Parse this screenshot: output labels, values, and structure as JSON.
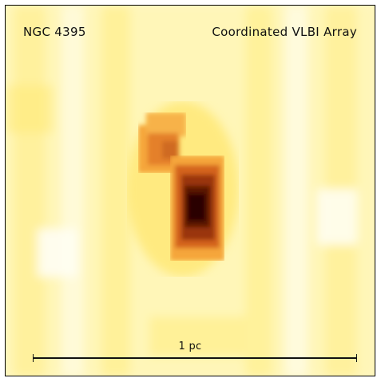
{
  "labels": {
    "source": "NGC 4395",
    "instrument": "Coordinated VLBI Array",
    "scale": "1 pc"
  },
  "colors": {
    "background": "#fff8c6",
    "faint_emission": "#ffee7a",
    "mid_emission": "#f5a63a",
    "strong_emission": "#c8581a",
    "peak_emission": "#3a0a04",
    "annotation": "#111111"
  },
  "colormap": "yellow-orange-brown heat",
  "features": [
    {
      "name": "upper-component",
      "relative_intensity": 0.55
    },
    {
      "name": "lower-component",
      "relative_intensity": 1.0
    }
  ]
}
